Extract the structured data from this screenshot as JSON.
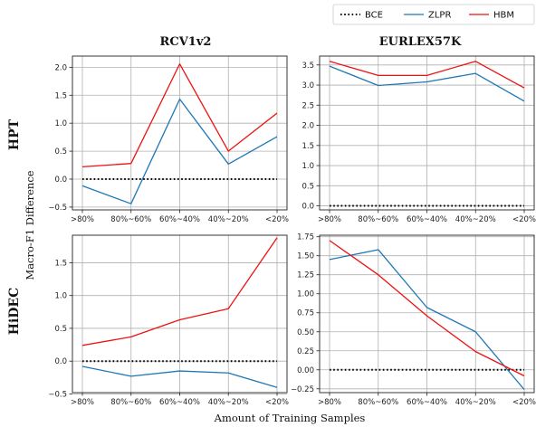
{
  "chart_data": {
    "xlabel": "Amount of Training Samples",
    "ylabel": "Macro-F1 Difference",
    "categories": [
      ">80%",
      "80%~60%",
      "60%~40%",
      "40%~20%",
      "<20%"
    ],
    "legend": {
      "placement": "top-right",
      "entries": [
        {
          "name": "BCE",
          "color": "#000000",
          "style": "dotted"
        },
        {
          "name": "ZLPR",
          "color": "#1f77b4",
          "style": "solid"
        },
        {
          "name": "HBM",
          "color": "#ee1111",
          "style": "solid"
        }
      ]
    },
    "column_titles": [
      "RCV1v2",
      "EURLEX57K"
    ],
    "row_labels": [
      "HPT",
      "HiDEC"
    ],
    "panels": [
      {
        "type": "line",
        "title": "RCV1v2",
        "row": "HPT",
        "grid": true,
        "ylim": [
          -0.55,
          2.2
        ],
        "yticks": [
          "−0.5",
          "0.0",
          "0.5",
          "1.0",
          "1.5",
          "2.0"
        ],
        "ytick_values": [
          -0.5,
          0,
          0.5,
          1.0,
          1.5,
          2.0
        ],
        "series": [
          {
            "name": "BCE",
            "values": [
              0,
              0,
              0,
              0,
              0
            ]
          },
          {
            "name": "ZLPR",
            "values": [
              -0.12,
              -0.44,
              1.43,
              0.27,
              0.76
            ]
          },
          {
            "name": "HBM",
            "values": [
              0.22,
              0.28,
              2.06,
              0.5,
              1.18
            ]
          }
        ]
      },
      {
        "type": "line",
        "title": "EURLEX57K",
        "row": "HPT",
        "grid": true,
        "ylim": [
          -0.1,
          3.72
        ],
        "yticks": [
          "0.0",
          "0.5",
          "1.0",
          "1.5",
          "2.0",
          "2.5",
          "3.0",
          "3.5"
        ],
        "ytick_values": [
          0,
          0.5,
          1.0,
          1.5,
          2.0,
          2.5,
          3.0,
          3.5
        ],
        "series": [
          {
            "name": "BCE",
            "values": [
              0,
              0,
              0,
              0,
              0
            ]
          },
          {
            "name": "ZLPR",
            "values": [
              3.47,
              2.99,
              3.08,
              3.29,
              2.6
            ]
          },
          {
            "name": "HBM",
            "values": [
              3.59,
              3.24,
              3.24,
              3.59,
              2.93
            ]
          }
        ]
      },
      {
        "type": "line",
        "title": "RCV1v2",
        "row": "HiDEC",
        "grid": true,
        "ylim": [
          -0.48,
          1.92
        ],
        "yticks": [
          "−0.5",
          "0.0",
          "0.5",
          "1.0",
          "1.5"
        ],
        "ytick_values": [
          -0.5,
          0,
          0.5,
          1.0,
          1.5
        ],
        "series": [
          {
            "name": "BCE",
            "values": [
              0,
              0,
              0,
              0,
              0
            ]
          },
          {
            "name": "ZLPR",
            "values": [
              -0.08,
              -0.23,
              -0.15,
              -0.18,
              -0.4
            ]
          },
          {
            "name": "HBM",
            "values": [
              0.24,
              0.37,
              0.63,
              0.8,
              1.88
            ]
          }
        ]
      },
      {
        "type": "line",
        "title": "EURLEX57K",
        "row": "HiDEC",
        "grid": true,
        "ylim": [
          -0.3,
          1.77
        ],
        "yticks": [
          "−0.25",
          "0.00",
          "0.25",
          "0.50",
          "0.75",
          "1.00",
          "1.25",
          "1.50",
          "1.75"
        ],
        "ytick_values": [
          -0.25,
          0,
          0.25,
          0.5,
          0.75,
          1.0,
          1.25,
          1.5,
          1.75
        ],
        "series": [
          {
            "name": "BCE",
            "values": [
              0,
              0,
              0,
              0,
              0
            ]
          },
          {
            "name": "ZLPR",
            "values": [
              1.45,
              1.58,
              0.82,
              0.5,
              -0.26
            ]
          },
          {
            "name": "HBM",
            "values": [
              1.7,
              1.25,
              0.71,
              0.24,
              -0.08
            ]
          }
        ]
      }
    ]
  }
}
